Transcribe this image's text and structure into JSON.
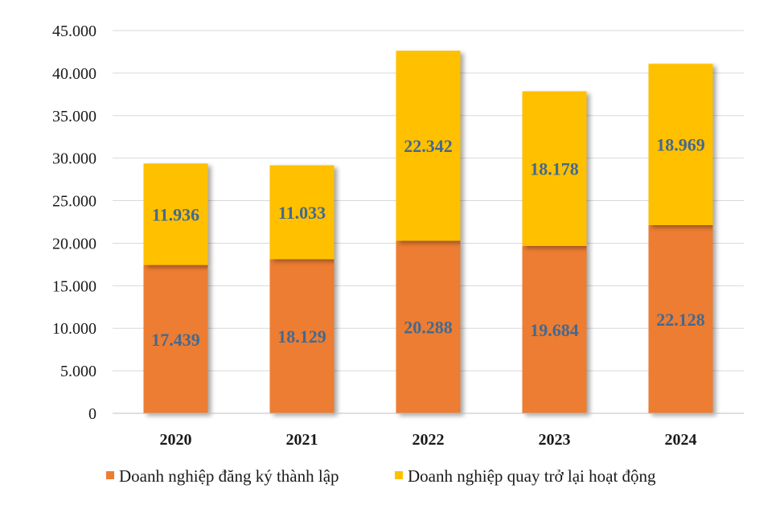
{
  "chart_data": {
    "type": "bar",
    "stacked": true,
    "categories": [
      "2020",
      "2021",
      "2022",
      "2023",
      "2024"
    ],
    "series": [
      {
        "name": "Doanh nghiệp đăng ký thành lập",
        "color": "#ed7d31",
        "values": [
          17439,
          18129,
          20288,
          19684,
          22128
        ],
        "labels": [
          "17.439",
          "18.129",
          "20.288",
          "19.684",
          "22.128"
        ]
      },
      {
        "name": "Doanh nghiệp quay trở lại hoạt động",
        "color": "#ffc000",
        "values": [
          11936,
          11033,
          22342,
          18178,
          18969
        ],
        "labels": [
          "11.936",
          "11.033",
          "22.342",
          "18.178",
          "18.969"
        ]
      }
    ],
    "ylim": [
      0,
      45000
    ],
    "yticks": [
      0,
      5000,
      10000,
      15000,
      20000,
      25000,
      30000,
      35000,
      40000,
      45000
    ],
    "ytick_labels": [
      "0",
      "5.000",
      "10.000",
      "15.000",
      "20.000",
      "25.000",
      "30.000",
      "35.000",
      "40.000",
      "45.000"
    ],
    "grid": true,
    "legend_position": "bottom",
    "label_color": "#44698f",
    "title": "",
    "xlabel": "",
    "ylabel": ""
  }
}
